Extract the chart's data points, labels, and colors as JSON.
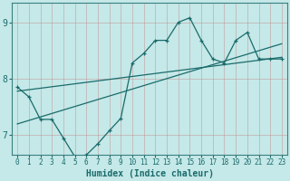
{
  "xlabel": "Humidex (Indice chaleur)",
  "bg_color": "#c5e8e8",
  "line_color": "#1a6b6b",
  "xlim": [
    -0.5,
    23.5
  ],
  "ylim": [
    6.65,
    9.35
  ],
  "yticks": [
    7,
    8,
    9
  ],
  "xticks": [
    0,
    1,
    2,
    3,
    4,
    5,
    6,
    7,
    8,
    9,
    10,
    11,
    12,
    13,
    14,
    15,
    16,
    17,
    18,
    19,
    20,
    21,
    22,
    23
  ],
  "data_x": [
    0,
    1,
    2,
    3,
    4,
    5,
    6,
    7,
    8,
    9,
    10,
    11,
    12,
    13,
    14,
    15,
    16,
    17,
    18,
    19,
    20,
    21,
    22,
    23
  ],
  "data_y": [
    7.85,
    7.68,
    7.28,
    7.28,
    6.95,
    6.62,
    6.65,
    6.85,
    7.08,
    7.3,
    8.28,
    8.45,
    8.68,
    8.68,
    9.0,
    9.08,
    8.68,
    8.35,
    8.28,
    8.68,
    8.82,
    8.35,
    8.35,
    8.35
  ],
  "trend1_x": [
    0,
    23
  ],
  "trend1_y": [
    7.78,
    8.38
  ],
  "trend2_x": [
    0,
    23
  ],
  "trend2_y": [
    7.2,
    8.62
  ],
  "grid_color": "#9cbcbc",
  "grid_lw": 0.5,
  "spine_color": "#3a8080"
}
